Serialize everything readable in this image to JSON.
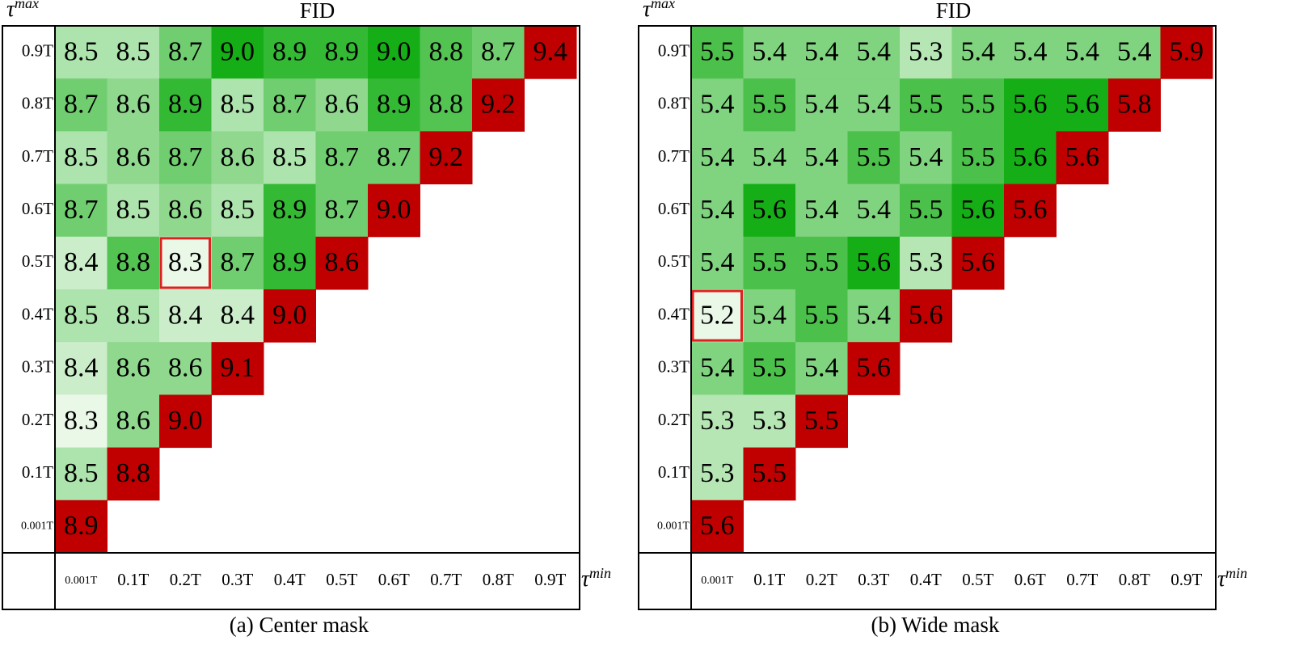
{
  "chart_data": [
    {
      "type": "heatmap",
      "title": "FID",
      "caption": "(a) Center mask",
      "y_label": "τ",
      "y_label_sup": "max",
      "x_label": "τ",
      "x_label_sup": "min",
      "y_categories": [
        "0.9T",
        "0.8T",
        "0.7T",
        "0.6T",
        "0.5T",
        "0.4T",
        "0.3T",
        "0.2T",
        "0.1T",
        "0.001T"
      ],
      "x_categories": [
        "0.001T",
        "0.1T",
        "0.2T",
        "0.3T",
        "0.4T",
        "0.5T",
        "0.6T",
        "0.7T",
        "0.8T",
        "0.9T"
      ],
      "values": [
        [
          8.5,
          8.5,
          8.7,
          9,
          8.9,
          8.9,
          9,
          8.8,
          8.7,
          9.4
        ],
        [
          8.7,
          8.6,
          8.9,
          8.5,
          8.7,
          8.6,
          8.9,
          8.8,
          9.2,
          null
        ],
        [
          8.5,
          8.6,
          8.7,
          8.6,
          8.5,
          8.7,
          8.7,
          9.2,
          null,
          null
        ],
        [
          8.7,
          8.5,
          8.6,
          8.5,
          8.9,
          8.7,
          9,
          null,
          null,
          null
        ],
        [
          8.4,
          8.8,
          8.3,
          8.7,
          8.9,
          8.6,
          null,
          null,
          null,
          null
        ],
        [
          8.5,
          8.5,
          8.4,
          8.4,
          9,
          null,
          null,
          null,
          null,
          null
        ],
        [
          8.4,
          8.6,
          8.6,
          9.1,
          null,
          null,
          null,
          null,
          null,
          null
        ],
        [
          8.3,
          8.6,
          9,
          null,
          null,
          null,
          null,
          null,
          null,
          null
        ],
        [
          8.5,
          8.8,
          null,
          null,
          null,
          null,
          null,
          null,
          null,
          null
        ],
        [
          8.9,
          null,
          null,
          null,
          null,
          null,
          null,
          null,
          null,
          null
        ]
      ],
      "value_labels": [
        [
          "8.5",
          "8.5",
          "8.7",
          "9.0",
          "8.9",
          "8.9",
          "9.0",
          "8.8",
          "8.7",
          "9.4"
        ],
        [
          "8.7",
          "8.6",
          "8.9",
          "8.5",
          "8.7",
          "8.6",
          "8.9",
          "8.8",
          "9.2",
          null
        ],
        [
          "8.5",
          "8.6",
          "8.7",
          "8.6",
          "8.5",
          "8.7",
          "8.7",
          "9.2",
          null,
          null
        ],
        [
          "8.7",
          "8.5",
          "8.6",
          "8.5",
          "8.9",
          "8.7",
          "9.0",
          null,
          null,
          null
        ],
        [
          "8.4",
          "8.8",
          "8.3",
          "8.7",
          "8.9",
          "8.6",
          null,
          null,
          null,
          null
        ],
        [
          "8.5",
          "8.5",
          "8.4",
          "8.4",
          "9.0",
          null,
          null,
          null,
          null,
          null
        ],
        [
          "8.4",
          "8.6",
          "8.6",
          "9.1",
          null,
          null,
          null,
          null,
          null,
          null
        ],
        [
          "8.3",
          "8.6",
          "9.0",
          null,
          null,
          null,
          null,
          null,
          null,
          null
        ],
        [
          "8.5",
          "8.8",
          null,
          null,
          null,
          null,
          null,
          null,
          null,
          null
        ],
        [
          "8.9",
          null,
          null,
          null,
          null,
          null,
          null,
          null,
          null,
          null
        ]
      ],
      "colormap": [
        "#eaf8e8",
        "#16ae16"
      ],
      "diagonal_color": "#c00000",
      "highlight": {
        "row": 4,
        "col": 2,
        "color": "#e02020"
      }
    },
    {
      "type": "heatmap",
      "title": "FID",
      "caption": "(b) Wide mask",
      "y_label": "τ",
      "y_label_sup": "max",
      "x_label": "τ",
      "x_label_sup": "min",
      "y_categories": [
        "0.9T",
        "0.8T",
        "0.7T",
        "0.6T",
        "0.5T",
        "0.4T",
        "0.3T",
        "0.2T",
        "0.1T",
        "0.001T"
      ],
      "x_categories": [
        "0.001T",
        "0.1T",
        "0.2T",
        "0.3T",
        "0.4T",
        "0.5T",
        "0.6T",
        "0.7T",
        "0.8T",
        "0.9T"
      ],
      "values": [
        [
          5.5,
          5.4,
          5.4,
          5.4,
          5.3,
          5.4,
          5.4,
          5.4,
          5.4,
          5.9
        ],
        [
          5.4,
          5.5,
          5.4,
          5.4,
          5.5,
          5.5,
          5.6,
          5.6,
          5.8,
          null
        ],
        [
          5.4,
          5.4,
          5.4,
          5.5,
          5.4,
          5.5,
          5.6,
          5.6,
          null,
          null
        ],
        [
          5.4,
          5.6,
          5.4,
          5.4,
          5.5,
          5.6,
          5.6,
          null,
          null,
          null
        ],
        [
          5.4,
          5.5,
          5.5,
          5.6,
          5.3,
          5.6,
          null,
          null,
          null,
          null
        ],
        [
          5.2,
          5.4,
          5.5,
          5.4,
          5.6,
          null,
          null,
          null,
          null,
          null
        ],
        [
          5.4,
          5.5,
          5.4,
          5.6,
          null,
          null,
          null,
          null,
          null,
          null
        ],
        [
          5.3,
          5.3,
          5.5,
          null,
          null,
          null,
          null,
          null,
          null,
          null
        ],
        [
          5.3,
          5.5,
          null,
          null,
          null,
          null,
          null,
          null,
          null,
          null
        ],
        [
          5.6,
          null,
          null,
          null,
          null,
          null,
          null,
          null,
          null,
          null
        ]
      ],
      "colormap": [
        "#eaf8e8",
        "#16ae16"
      ],
      "diagonal_color": "#c00000",
      "highlight": {
        "row": 5,
        "col": 0,
        "color": "#e02020"
      }
    }
  ]
}
